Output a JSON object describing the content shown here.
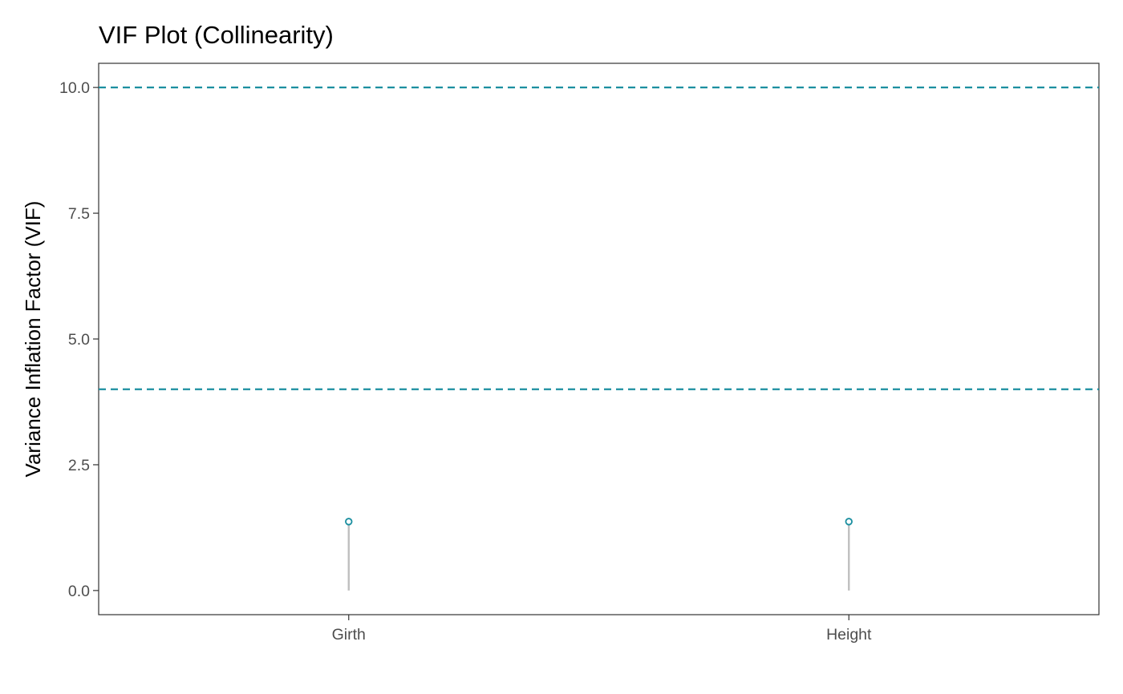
{
  "chart_data": {
    "type": "scatter",
    "style": "lollipop",
    "title": "VIF Plot (Collinearity)",
    "xlabel": "",
    "ylabel": "Variance Inflation Factor (VIF)",
    "categories": [
      "Girth",
      "Height"
    ],
    "values": [
      1.37,
      1.37
    ],
    "ylim": [
      -0.48,
      10.48
    ],
    "yticks": [
      0.0,
      2.5,
      5.0,
      7.5,
      10.0
    ],
    "ytick_labels": [
      "0.0",
      "2.5",
      "5.0",
      "7.5",
      "10.0"
    ],
    "reference_lines": [
      10,
      4
    ],
    "grid": false,
    "legend": "none",
    "colors": {
      "point": "#1b8fa0",
      "stem": "#bfbfbf",
      "reference_line": "#1b8fa0",
      "panel_border": "#333333",
      "tick_label": "#4d4d4d"
    }
  }
}
